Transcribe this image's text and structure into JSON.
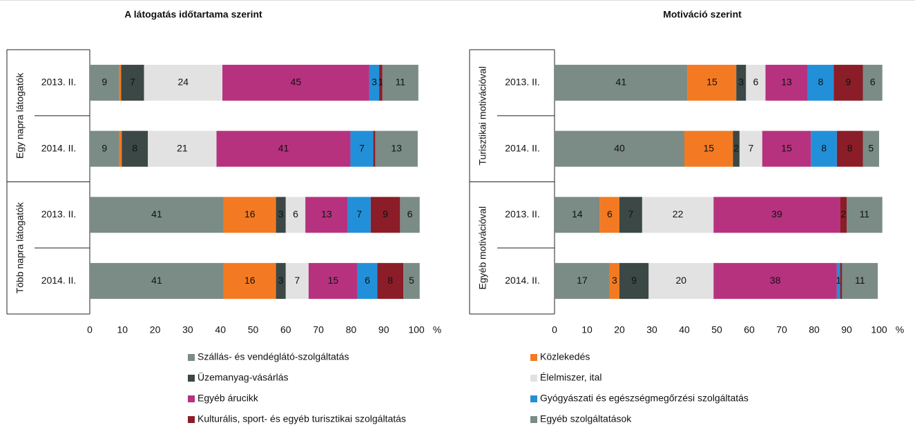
{
  "chart_data": [
    {
      "type": "stacked-bar-horizontal",
      "title": "A látogatás időtartama szerint",
      "categories": [
        "2013. II.",
        "2014. II.",
        "2013. II.",
        "2014. II."
      ],
      "groups": [
        "Egy napra látogatók",
        "Több napra látogatók"
      ],
      "xlim": [
        0,
        100
      ],
      "xticks": [
        0,
        10,
        20,
        30,
        40,
        50,
        60,
        70,
        80,
        90,
        100
      ],
      "xlabel": "%",
      "series": [
        {
          "name": "Szállás- és vendéglátó-szolgáltatás",
          "color": "#7b8b85",
          "values": [
            9,
            9,
            41,
            41
          ]
        },
        {
          "name": "Közlekedés",
          "color": "#f37a22",
          "values": [
            0.6,
            0.8,
            16,
            16
          ]
        },
        {
          "name": "Üzemanyag-vásárlás",
          "color": "#3b4845",
          "values": [
            7,
            8,
            3,
            3
          ]
        },
        {
          "name": "Élelmiszer, ital",
          "color": "#e2e2e2",
          "values": [
            24,
            21,
            6,
            7
          ]
        },
        {
          "name": "Egyéb árucikk",
          "color": "#b6327f",
          "values": [
            45,
            41,
            13,
            15
          ]
        },
        {
          "name": "Gyógyászati és egészségmegőrzési szolgáltatás",
          "color": "#2290d8",
          "values": [
            3,
            7,
            7,
            6
          ]
        },
        {
          "name": "Kulturális, sport- és egyéb turisztikai szolgáltatás",
          "color": "#8b1d28",
          "values": [
            1,
            0.6,
            9,
            8
          ]
        },
        {
          "name": "Egyéb szolgáltatások",
          "color": "#7b8b85",
          "values": [
            11,
            13,
            6,
            5
          ]
        }
      ]
    },
    {
      "type": "stacked-bar-horizontal",
      "title": "Motiváció szerint",
      "categories": [
        "2013. II.",
        "2014. II.",
        "2013. II.",
        "2014. II."
      ],
      "groups": [
        "Turisztikai motivációval",
        "Egyéb motivációval"
      ],
      "xlim": [
        0,
        100
      ],
      "xticks": [
        0,
        10,
        20,
        30,
        40,
        50,
        60,
        70,
        80,
        90,
        100
      ],
      "xlabel": "%",
      "series": [
        {
          "color": "#7b8b85",
          "values": [
            41,
            40,
            14,
            17
          ]
        },
        {
          "color": "#f37a22",
          "values": [
            15,
            15,
            6,
            3
          ]
        },
        {
          "color": "#3b4845",
          "values": [
            3,
            2,
            7,
            9
          ]
        },
        {
          "color": "#e2e2e2",
          "values": [
            6,
            7,
            22,
            20
          ]
        },
        {
          "color": "#b6327f",
          "values": [
            13,
            15,
            39,
            38
          ]
        },
        {
          "color": "#2290d8",
          "values": [
            8,
            8,
            0,
            1
          ]
        },
        {
          "color": "#8b1d28",
          "values": [
            9,
            8,
            2,
            0.6
          ]
        },
        {
          "color": "#7b8b85",
          "values": [
            6,
            5,
            11,
            11
          ]
        }
      ]
    }
  ]
}
